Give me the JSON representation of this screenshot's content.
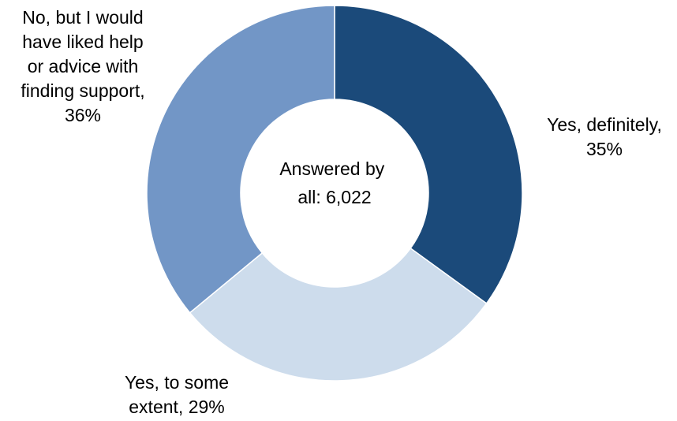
{
  "chart_data": {
    "type": "pie",
    "donut": true,
    "center_label": [
      "Answered by",
      "all: 6,022"
    ],
    "slices": [
      {
        "category": "Yes, definitely",
        "value": 35,
        "value_label": "35%",
        "color": "#1b4a7a",
        "label_lines": [
          "Yes, definitely,",
          "35%"
        ]
      },
      {
        "category": "Yes, to some extent",
        "value": 29,
        "value_label": "29%",
        "color": "#cddcec",
        "label_lines": [
          "Yes, to some",
          "extent, 29%"
        ]
      },
      {
        "category": "No, but I would have liked help or advice with finding support",
        "value": 36,
        "value_label": "36%",
        "color": "#7296c6",
        "label_lines": [
          "No, but I would",
          "have liked help",
          "or advice with",
          "finding support,",
          "36%"
        ]
      }
    ],
    "start_angle": "12 o'clock",
    "direction": "clockwise",
    "legend": "none"
  }
}
